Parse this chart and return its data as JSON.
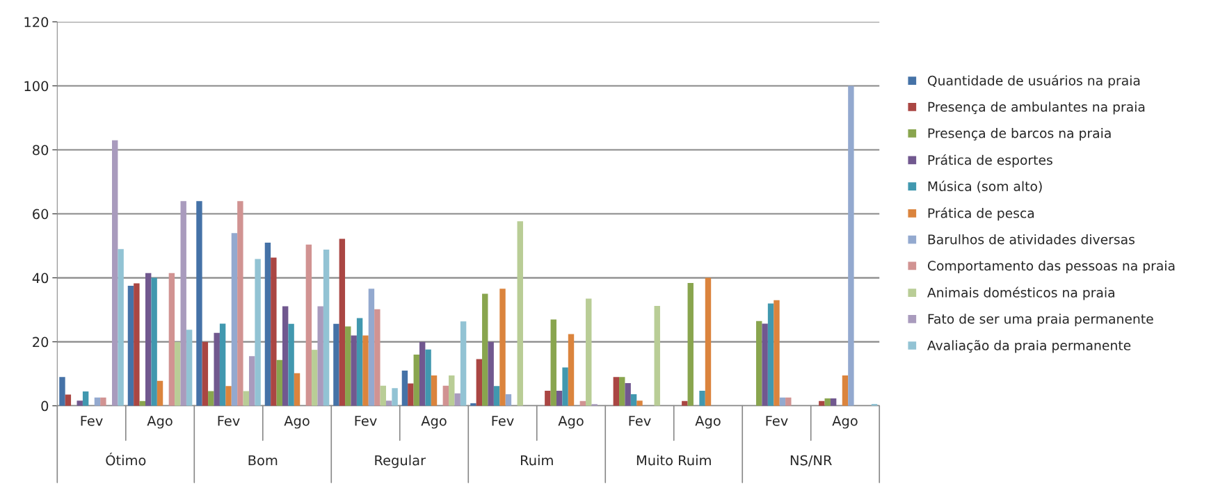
{
  "chart_data": {
    "type": "bar",
    "categories": [
      "Fev",
      "Ago",
      "Fev",
      "Ago",
      "Fev",
      "Ago",
      "Fev",
      "Ago",
      "Fev",
      "Ago",
      "Fev",
      "Ago"
    ],
    "annotations": [
      "Ótimo",
      "Bom",
      "Regular",
      "Ruim",
      "Muito Ruim",
      "NS/NR"
    ],
    "series": [
      {
        "name": "Quantidade de usuários na praia",
        "color": "#4572a7",
        "values": [
          9,
          37.5,
          64,
          51,
          25.6,
          11,
          0.8,
          0,
          0,
          0,
          0,
          0
        ]
      },
      {
        "name": "Presença de ambulantes na praia",
        "color": "#aa4643",
        "values": [
          3.5,
          38.3,
          20,
          46.3,
          52.2,
          7,
          14.6,
          4.7,
          9,
          1.5,
          0,
          1.5
        ]
      },
      {
        "name": "Presença de barcos na praia",
        "color": "#89a54e",
        "values": [
          0,
          1.5,
          4.6,
          14.3,
          24.8,
          16,
          35,
          27,
          9,
          38.4,
          26.5,
          2.3
        ]
      },
      {
        "name": "Prática de esportes",
        "color": "#71588f",
        "values": [
          1.6,
          41.5,
          22.8,
          31.1,
          22,
          20,
          20,
          4.7,
          7.1,
          0,
          25.7,
          2.3
        ]
      },
      {
        "name": "Música (som alto)",
        "color": "#4198af",
        "values": [
          4.5,
          40,
          25.7,
          25.6,
          27.4,
          17.6,
          6.2,
          12,
          3.6,
          4.7,
          32,
          0
        ]
      },
      {
        "name": "Prática de pesca",
        "color": "#db843d",
        "values": [
          0,
          7.8,
          6.2,
          10.2,
          22,
          9.5,
          36.6,
          22.4,
          1.6,
          40,
          33,
          9.5
        ]
      },
      {
        "name": "Barulhos de atividades diversas",
        "color": "#93a9cf",
        "values": [
          2.6,
          0,
          54,
          0,
          36.6,
          0,
          3.6,
          0,
          0,
          0,
          2.6,
          100
        ]
      },
      {
        "name": "Comportamento das pessoas na praia",
        "color": "#d19392",
        "values": [
          2.6,
          41.5,
          64,
          50.4,
          30.2,
          6.3,
          0,
          1.5,
          0,
          0,
          2.6,
          0
        ]
      },
      {
        "name": "Animais domésticos na praia",
        "color": "#b9cd96",
        "values": [
          0,
          20,
          4.6,
          17.5,
          6.3,
          9.5,
          57.7,
          33.5,
          31.2,
          0,
          0,
          0
        ]
      },
      {
        "name": "Fato de ser uma praia permanente",
        "color": "#a99bbd",
        "values": [
          83,
          64,
          15.5,
          31.1,
          1.6,
          3.9,
          0,
          0.5,
          0,
          0,
          0,
          0
        ]
      },
      {
        "name": "Avaliação da praia permanente",
        "color": "#92c3d4",
        "values": [
          49,
          23.8,
          45.9,
          48.8,
          5.5,
          26.4,
          0,
          0,
          0,
          0,
          0,
          0.6
        ]
      }
    ],
    "ylim": [
      0,
      120
    ],
    "yticks": [
      0,
      20,
      40,
      60,
      80,
      100,
      120
    ],
    "grid": "y",
    "legend": "right"
  }
}
